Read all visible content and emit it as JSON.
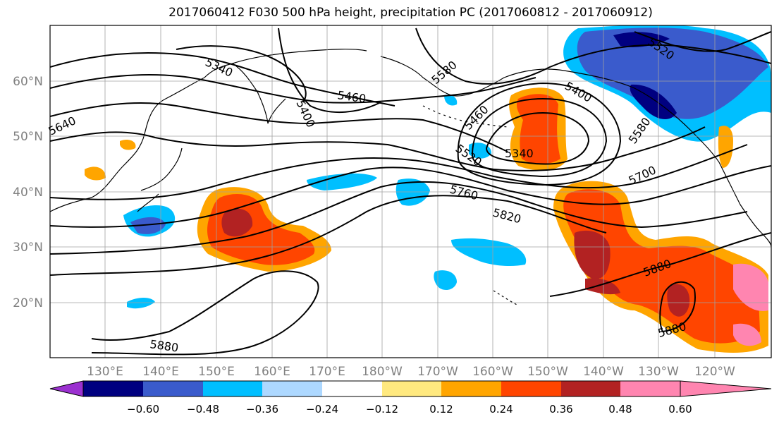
{
  "title": "2017060412 F030 500 hPa height, precipitation PC (2017060812 - 2017060912)",
  "map": {
    "lon_ticks": [
      "130°E",
      "140°E",
      "150°E",
      "160°E",
      "170°E",
      "180°W",
      "170°W",
      "160°W",
      "150°W",
      "140°W",
      "130°W",
      "120°W"
    ],
    "lat_ticks": [
      "60°N",
      "50°N",
      "40°N",
      "30°N",
      "20°N"
    ],
    "contour_labels": [
      "5340",
      "5580",
      "5400",
      "5460",
      "5640",
      "5460",
      "5520",
      "5340",
      "5400",
      "5580",
      "5700",
      "5760",
      "5820",
      "5880",
      "5880",
      "5880",
      "5520"
    ],
    "colors": {
      "contour": "#000000",
      "grid": "#a0a0a0",
      "coast": "#000000",
      "tick_label": "#808080"
    }
  },
  "colorbar": {
    "tick_labels": [
      "−0.60",
      "−0.48",
      "−0.36",
      "−0.24",
      "−0.12",
      "0.12",
      "0.24",
      "0.36",
      "0.48",
      "0.60"
    ],
    "colors": [
      "#9b30d0",
      "#000080",
      "#3a5bcc",
      "#00bfff",
      "#add8ff",
      "#ffffff",
      "#ffe97f",
      "#ffa500",
      "#ff4500",
      "#b22222",
      "#ff85b0"
    ]
  }
}
